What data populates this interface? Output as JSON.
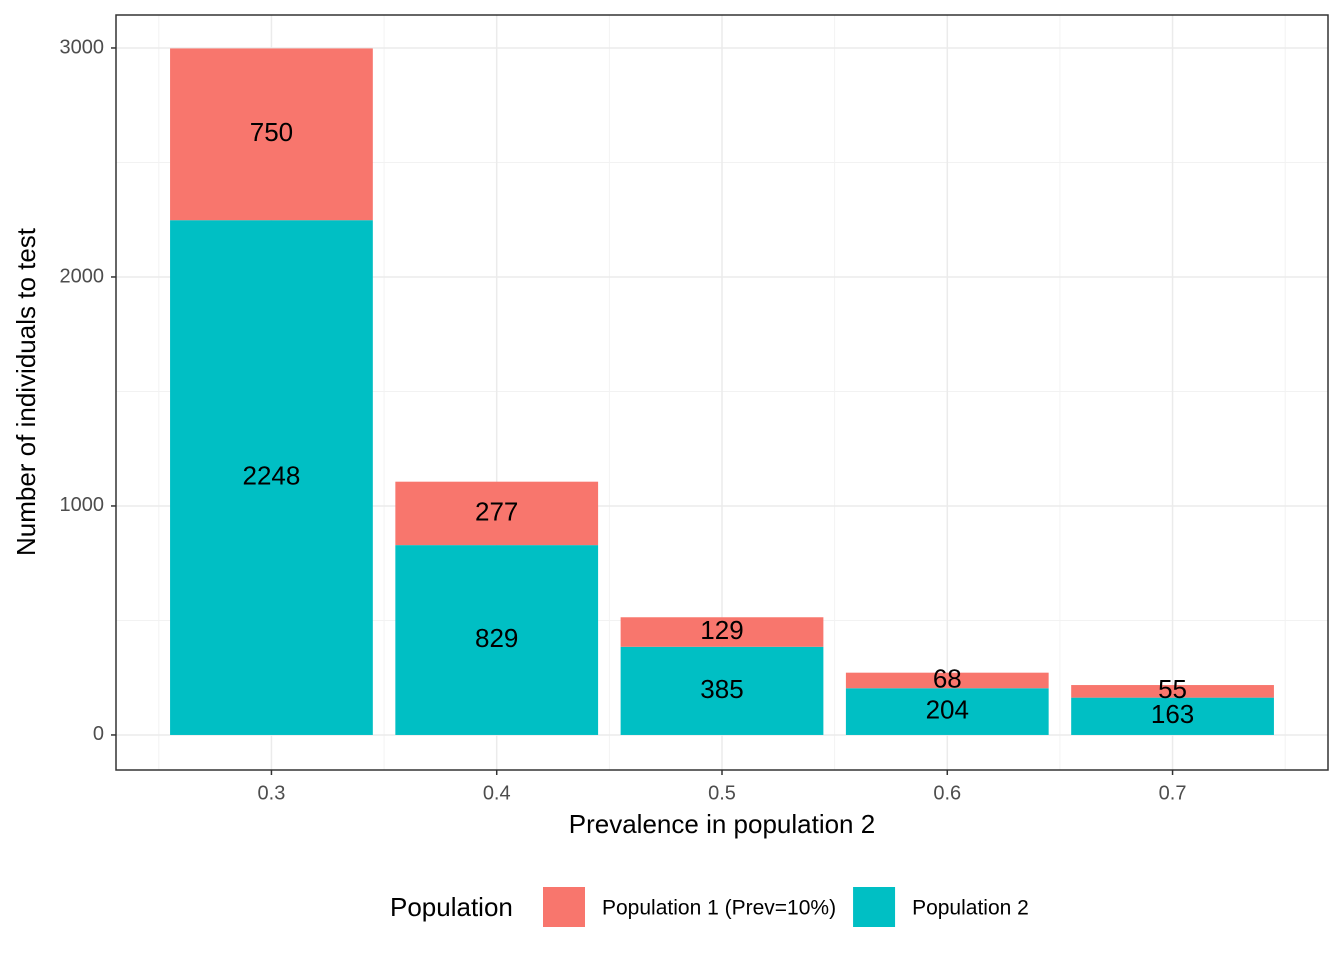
{
  "chart_data": {
    "type": "stacked_bar",
    "x_label": "Prevalence in population 2",
    "y_label": "Number of individuals to test",
    "x": [
      0.3,
      0.4,
      0.5,
      0.6,
      0.7
    ],
    "series": [
      {
        "name": "Population 1 (Prev=10%)",
        "color": "#f8766d",
        "values": [
          750,
          277,
          129,
          68,
          55
        ]
      },
      {
        "name": "Population 2",
        "color": "#00bfc4",
        "values": [
          2248,
          829,
          385,
          204,
          163
        ]
      }
    ],
    "xlim": [
      0.231,
      0.769
    ],
    "xticks": [
      0.3,
      0.4,
      0.5,
      0.6,
      0.7
    ],
    "ylim": [
      -153,
      3144
    ],
    "yticks": [
      0,
      1000,
      2000,
      3000
    ],
    "grid": true,
    "legend_title": "Population",
    "legend_position": "bottom"
  }
}
